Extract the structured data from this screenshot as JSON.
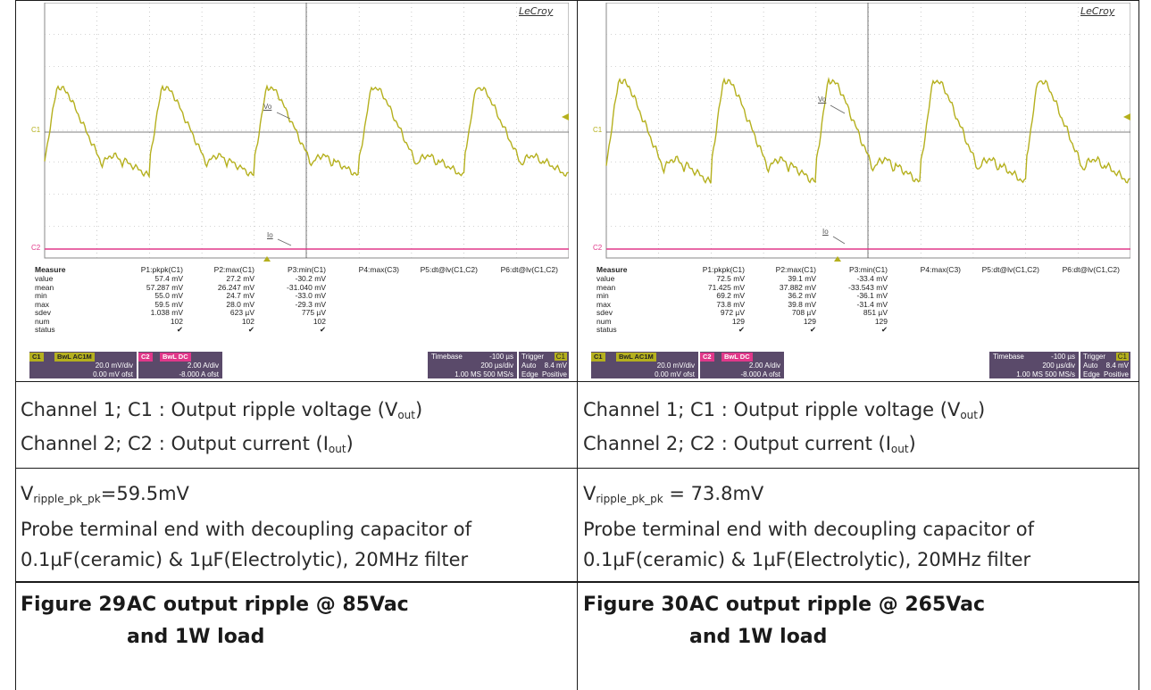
{
  "panels": [
    {
      "logo": "LeCroy",
      "trace_labels": {
        "c1": "C1",
        "c2": "C2",
        "vo": "Vo",
        "io": "Io"
      },
      "measure": {
        "header": [
          "Measure",
          "P1:pkpk(C1)",
          "P2:max(C1)",
          "P3:min(C1)",
          "P4:max(C3)",
          "P5:dt@lv(C1,C2)",
          "P6:dt@lv(C1,C2)"
        ],
        "rows": [
          {
            "label": "value",
            "p1": "57.4 mV",
            "p2": "27.2 mV",
            "p3": "-30.2 mV"
          },
          {
            "label": "mean",
            "p1": "57.287 mV",
            "p2": "26.247 mV",
            "p3": "-31.040 mV"
          },
          {
            "label": "min",
            "p1": "55.0 mV",
            "p2": "24.7 mV",
            "p3": "-33.0 mV"
          },
          {
            "label": "max",
            "p1": "59.5 mV",
            "p2": "28.0 mV",
            "p3": "-29.3 mV"
          },
          {
            "label": "sdev",
            "p1": "1.038 mV",
            "p2": "623 µV",
            "p3": "775 µV"
          },
          {
            "label": "num",
            "p1": "102",
            "p2": "102",
            "p3": "102"
          },
          {
            "label": "status",
            "p1": "✔",
            "p2": "✔",
            "p3": "✔"
          }
        ]
      },
      "ch1": {
        "tag": "C1",
        "badge": "BwL AC1M",
        "line1": "20.0 mV/div",
        "line2": "0.00 mV ofst"
      },
      "ch2": {
        "tag": "C2",
        "badge": "BwL DC",
        "line1": "2.00 A/div",
        "line2": "-8.000 A ofst"
      },
      "timebase": {
        "label": "Timebase",
        "delay": "-100 µs",
        "div": "200 µs/div",
        "rate": "1.00 MS   500 MS/s"
      },
      "trigger": {
        "label": "Trigger",
        "ch": "C1",
        "mode": "Auto",
        "level": "8.4 mV",
        "type": "Edge",
        "slope": "Positive"
      },
      "legend1": {
        "pre": "Channel 1; C1 : Output ripple voltage (V",
        "sub": "out",
        "post": ")"
      },
      "legend2": {
        "pre": "Channel 2; C2 : Output current (I",
        "sub": "out",
        "post": ")"
      },
      "ripple": {
        "pre": "V",
        "sub": "ripple_pk_pk",
        "post": "=59.5mV"
      },
      "probe1": "Probe terminal end with decoupling capacitor of",
      "probe2": "0.1µF(ceramic) & 1µF(Electrolytic), 20MHz filter",
      "fig_num": "Figure 29",
      "fig_title": "AC output ripple @ 85Vac and 1W load"
    },
    {
      "logo": "LeCroy",
      "trace_labels": {
        "c1": "C1",
        "c2": "C2",
        "vo": "Vo",
        "io": "Io"
      },
      "measure": {
        "header": [
          "Measure",
          "P1:pkpk(C1)",
          "P2:max(C1)",
          "P3:min(C1)",
          "P4:max(C3)",
          "P5:dt@lv(C1,C2)",
          "P6:dt@lv(C1,C2)"
        ],
        "rows": [
          {
            "label": "value",
            "p1": "72.5 mV",
            "p2": "39.1 mV",
            "p3": "-33.4 mV"
          },
          {
            "label": "mean",
            "p1": "71.425 mV",
            "p2": "37.882 mV",
            "p3": "-33.543 mV"
          },
          {
            "label": "min",
            "p1": "69.2 mV",
            "p2": "36.2 mV",
            "p3": "-36.1 mV"
          },
          {
            "label": "max",
            "p1": "73.8 mV",
            "p2": "39.8 mV",
            "p3": "-31.4 mV"
          },
          {
            "label": "sdev",
            "p1": "972 µV",
            "p2": "708 µV",
            "p3": "851 µV"
          },
          {
            "label": "num",
            "p1": "129",
            "p2": "129",
            "p3": "129"
          },
          {
            "label": "status",
            "p1": "✔",
            "p2": "✔",
            "p3": "✔"
          }
        ]
      },
      "ch1": {
        "tag": "C1",
        "badge": "BwL AC1M",
        "line1": "20.0 mV/div",
        "line2": "0.00 mV ofst"
      },
      "ch2": {
        "tag": "C2",
        "badge": "BwL DC",
        "line1": "2.00 A/div",
        "line2": "-8.000 A ofst"
      },
      "timebase": {
        "label": "Timebase",
        "delay": "-100 µs",
        "div": "200 µs/div",
        "rate": "1.00 MS   500 MS/s"
      },
      "trigger": {
        "label": "Trigger",
        "ch": "C1",
        "mode": "Auto",
        "level": "8.4 mV",
        "type": "Edge",
        "slope": "Positive"
      },
      "legend1": {
        "pre": "Channel 1; C1 : Output ripple voltage (V",
        "sub": "out",
        "post": ")"
      },
      "legend2": {
        "pre": "Channel 2; C2 : Output current (I",
        "sub": "out",
        "post": ")"
      },
      "ripple": {
        "pre": "V",
        "sub": "ripple_pk_pk",
        "post": " = 73.8mV"
      },
      "probe1": "Probe terminal end with decoupling capacitor of",
      "probe2": "0.1µF(ceramic) & 1µF(Electrolytic), 20MHz filter",
      "fig_num": "Figure 30",
      "fig_title": "AC output ripple @ 265Vac and 1W load"
    }
  ],
  "colors": {
    "c1_trace": "#b5b01e",
    "c2_trace": "#e0388a",
    "grid": "#999999",
    "panel": "#5a4a6a"
  }
}
